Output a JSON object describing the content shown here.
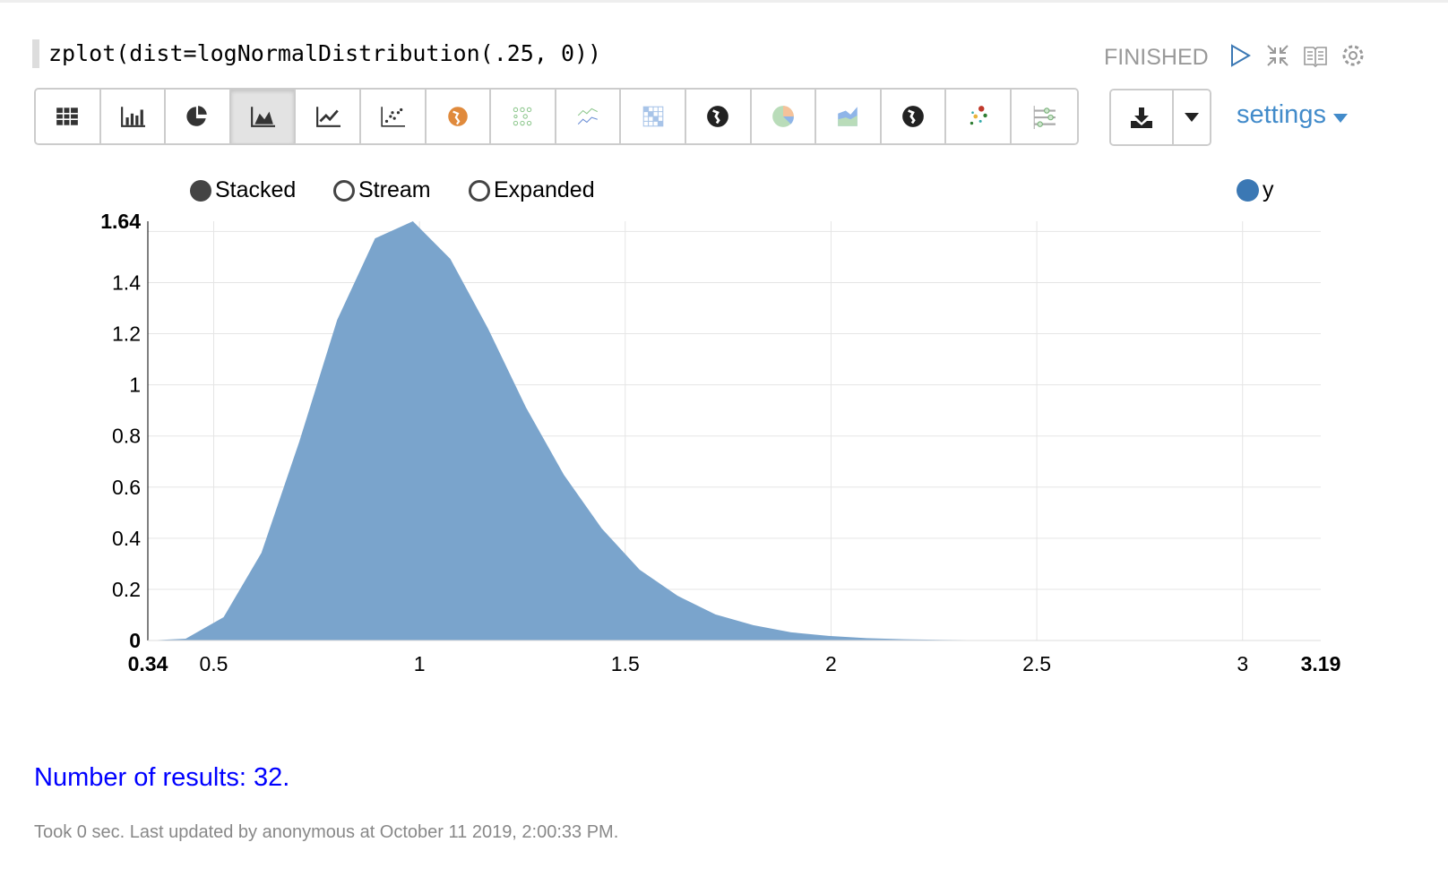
{
  "paragraph": {
    "code": "zplot(dist=logNormalDistribution(.25, 0))",
    "status": "FINISHED"
  },
  "header_icons": [
    "run-icon",
    "collapse-icon",
    "book-icon",
    "gear-icon"
  ],
  "toolbar": {
    "buttons": [
      "table",
      "bar-chart",
      "pie-chart",
      "area-chart",
      "line-chart",
      "scatter-chart",
      "map",
      "heatmap-dots",
      "multi-line",
      "matrix",
      "globe",
      "pie-color",
      "stacked-area",
      "globe-dark",
      "scatter-color",
      "range-slider"
    ],
    "active": "area-chart",
    "download_label": "download",
    "settings_label": "settings"
  },
  "legend": {
    "modes": [
      "Stacked",
      "Stream",
      "Expanded"
    ],
    "selected_mode": "Stacked",
    "series": "y"
  },
  "colors": {
    "area": "#7aa4cc",
    "series": "#3b78b4",
    "link": "#428bca",
    "results": "#0000ff"
  },
  "chart_data": {
    "type": "area",
    "xlim": [
      0.34,
      3.19
    ],
    "ylim": [
      0,
      1.64
    ],
    "x_ticks": [
      "0.34",
      "0.5",
      "1",
      "1.5",
      "2",
      "2.5",
      "3",
      "3.19"
    ],
    "y_ticks": [
      "0",
      "0.2",
      "0.4",
      "0.6",
      "0.8",
      "1",
      "1.2",
      "1.4",
      "1.64"
    ],
    "grid": true,
    "legend": "top-right",
    "series": [
      {
        "name": "y",
        "x": [
          0.34,
          0.432,
          0.524,
          0.616,
          0.708,
          0.8,
          0.892,
          0.984,
          1.075,
          1.167,
          1.259,
          1.351,
          1.443,
          1.535,
          1.627,
          1.719,
          1.811,
          1.903,
          1.994,
          2.086,
          2.178,
          2.27,
          2.362,
          2.454,
          2.546,
          2.638,
          2.73,
          2.822,
          2.914,
          3.006,
          3.098,
          3.19
        ],
        "y": [
          0,
          0.007,
          0.091,
          0.343,
          0.778,
          1.254,
          1.573,
          1.64,
          1.493,
          1.219,
          0.911,
          0.648,
          0.438,
          0.277,
          0.175,
          0.102,
          0.06,
          0.032,
          0.018,
          0.009,
          0.005,
          0.0025,
          0.0012,
          0.0006,
          0.0003,
          0.0002,
          0.0001,
          0.0001,
          0,
          0,
          0,
          0
        ]
      }
    ]
  },
  "footer": {
    "results": "Number of results: 32.",
    "took": "Took 0 sec. Last updated by anonymous at October 11 2019, 2:00:33 PM."
  }
}
